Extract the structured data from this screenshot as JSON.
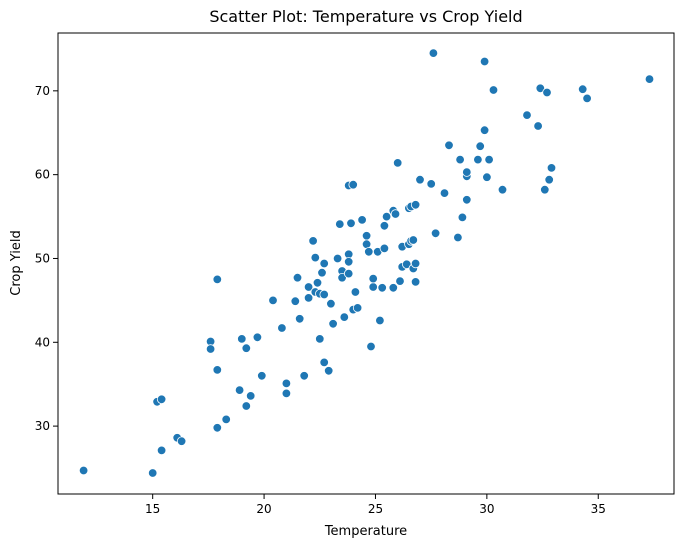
{
  "chart_data": {
    "type": "scatter",
    "title": "Scatter Plot: Temperature vs Crop Yield",
    "xlabel": "Temperature",
    "ylabel": "Crop Yield",
    "xlim": [
      10.75,
      38.4
    ],
    "ylim": [
      21.9,
      76.9
    ],
    "xticks": [
      15,
      20,
      25,
      30,
      35
    ],
    "yticks": [
      30,
      40,
      50,
      60,
      70
    ],
    "grid": false,
    "legend": "none",
    "point_color": "#1f77b4",
    "point_edge_color": "#ffffff",
    "points": [
      [
        11.9,
        24.7
      ],
      [
        15.0,
        24.4
      ],
      [
        15.2,
        32.9
      ],
      [
        15.4,
        33.2
      ],
      [
        15.4,
        27.1
      ],
      [
        16.1,
        28.6
      ],
      [
        16.3,
        28.2
      ],
      [
        17.6,
        40.1
      ],
      [
        17.6,
        39.2
      ],
      [
        17.9,
        36.7
      ],
      [
        17.9,
        47.5
      ],
      [
        17.9,
        29.8
      ],
      [
        18.3,
        30.8
      ],
      [
        18.9,
        34.3
      ],
      [
        19.0,
        40.4
      ],
      [
        19.2,
        39.3
      ],
      [
        19.2,
        32.4
      ],
      [
        19.4,
        33.6
      ],
      [
        19.7,
        40.6
      ],
      [
        19.9,
        36.0
      ],
      [
        20.4,
        45.0
      ],
      [
        20.8,
        41.7
      ],
      [
        21.0,
        35.1
      ],
      [
        21.0,
        33.9
      ],
      [
        21.4,
        44.9
      ],
      [
        21.5,
        47.7
      ],
      [
        21.6,
        42.8
      ],
      [
        21.8,
        36.0
      ],
      [
        22.0,
        46.6
      ],
      [
        22.0,
        45.3
      ],
      [
        22.2,
        52.1
      ],
      [
        22.3,
        50.1
      ],
      [
        22.3,
        46.0
      ],
      [
        22.4,
        47.1
      ],
      [
        22.5,
        40.4
      ],
      [
        22.5,
        45.8
      ],
      [
        22.6,
        48.3
      ],
      [
        22.7,
        37.6
      ],
      [
        22.7,
        49.4
      ],
      [
        22.7,
        45.7
      ],
      [
        22.9,
        36.6
      ],
      [
        23.0,
        44.6
      ],
      [
        23.1,
        42.2
      ],
      [
        23.3,
        50.0
      ],
      [
        23.4,
        54.1
      ],
      [
        23.5,
        48.5
      ],
      [
        23.5,
        47.7
      ],
      [
        23.6,
        43.0
      ],
      [
        23.8,
        58.7
      ],
      [
        23.8,
        50.5
      ],
      [
        23.8,
        49.6
      ],
      [
        23.8,
        48.2
      ],
      [
        23.9,
        54.2
      ],
      [
        24.0,
        58.8
      ],
      [
        24.0,
        43.9
      ],
      [
        24.1,
        46.0
      ],
      [
        24.2,
        44.1
      ],
      [
        24.4,
        54.6
      ],
      [
        24.6,
        52.7
      ],
      [
        24.6,
        51.7
      ],
      [
        24.7,
        50.8
      ],
      [
        24.8,
        39.5
      ],
      [
        24.9,
        46.6
      ],
      [
        24.9,
        47.6
      ],
      [
        25.1,
        50.8
      ],
      [
        25.2,
        42.6
      ],
      [
        25.3,
        46.5
      ],
      [
        25.4,
        51.2
      ],
      [
        25.4,
        53.9
      ],
      [
        25.5,
        55.0
      ],
      [
        25.8,
        46.5
      ],
      [
        25.8,
        55.7
      ],
      [
        25.9,
        55.3
      ],
      [
        26.0,
        61.4
      ],
      [
        26.1,
        47.3
      ],
      [
        26.2,
        51.4
      ],
      [
        26.2,
        49.0
      ],
      [
        26.4,
        49.3
      ],
      [
        26.5,
        56.0
      ],
      [
        26.5,
        51.7
      ],
      [
        26.6,
        56.2
      ],
      [
        26.6,
        52.1
      ],
      [
        26.7,
        48.8
      ],
      [
        26.7,
        52.2
      ],
      [
        26.8,
        56.4
      ],
      [
        26.8,
        49.4
      ],
      [
        26.8,
        47.2
      ],
      [
        27.0,
        59.4
      ],
      [
        27.5,
        58.9
      ],
      [
        27.6,
        74.5
      ],
      [
        27.7,
        53.0
      ],
      [
        28.1,
        57.8
      ],
      [
        28.3,
        63.5
      ],
      [
        28.7,
        52.5
      ],
      [
        28.8,
        61.8
      ],
      [
        28.9,
        54.9
      ],
      [
        29.1,
        57.0
      ],
      [
        29.1,
        59.8
      ],
      [
        29.1,
        60.3
      ],
      [
        29.6,
        61.8
      ],
      [
        29.7,
        63.4
      ],
      [
        29.9,
        65.3
      ],
      [
        29.9,
        73.5
      ],
      [
        30.0,
        59.7
      ],
      [
        30.1,
        61.8
      ],
      [
        30.3,
        70.1
      ],
      [
        30.7,
        58.2
      ],
      [
        31.8,
        67.1
      ],
      [
        32.3,
        65.8
      ],
      [
        32.4,
        70.3
      ],
      [
        32.6,
        58.2
      ],
      [
        32.7,
        69.8
      ],
      [
        32.8,
        59.4
      ],
      [
        32.9,
        60.8
      ],
      [
        34.3,
        70.2
      ],
      [
        34.5,
        69.1
      ],
      [
        37.3,
        71.4
      ]
    ]
  }
}
